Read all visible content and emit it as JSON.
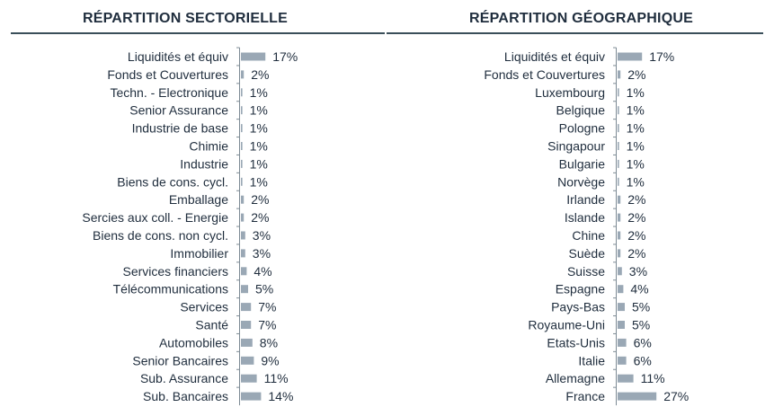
{
  "chart_data": [
    {
      "type": "bar",
      "title": "RÉPARTITION SECTORIELLE",
      "orientation": "horizontal",
      "categories": [
        "Liquidités et équiv",
        "Fonds et Couvertures",
        "Techn. - Electronique",
        "Senior Assurance",
        "Industrie de base",
        "Chimie",
        "Industrie",
        "Biens de cons. cycl.",
        "Emballage",
        "Sercies aux coll. - Energie",
        "Biens de cons. non cycl.",
        "Immobilier",
        "Services financiers",
        "Télécommunications",
        "Services",
        "Santé",
        "Automobiles",
        "Senior Bancaires",
        "Sub. Assurance",
        "Sub. Bancaires"
      ],
      "values": [
        17,
        2,
        1,
        1,
        1,
        1,
        1,
        1,
        2,
        2,
        3,
        3,
        4,
        5,
        7,
        7,
        8,
        9,
        11,
        14
      ],
      "value_labels": [
        "17%",
        "2%",
        "1%",
        "1%",
        "1%",
        "1%",
        "1%",
        "1%",
        "2%",
        "2%",
        "3%",
        "3%",
        "4%",
        "5%",
        "7%",
        "7%",
        "8%",
        "9%",
        "11%",
        "14%"
      ],
      "bar_color": "#9aa8b5",
      "xlim": [
        0,
        30
      ]
    },
    {
      "type": "bar",
      "title": "RÉPARTITION GÉOGRAPHIQUE",
      "orientation": "horizontal",
      "categories": [
        "Liquidités et équiv",
        "Fonds et Couvertures",
        "Luxembourg",
        "Belgique",
        "Pologne",
        "Singapour",
        "Bulgarie",
        "Norvège",
        "Irlande",
        "Islande",
        "Chine",
        "Suède",
        "Suisse",
        "Espagne",
        "Pays-Bas",
        "Royaume-Uni",
        "Etats-Unis",
        "Italie",
        "Allemagne",
        "France"
      ],
      "values": [
        17,
        2,
        1,
        1,
        1,
        1,
        1,
        1,
        2,
        2,
        2,
        2,
        3,
        4,
        5,
        5,
        6,
        6,
        11,
        27
      ],
      "value_labels": [
        "17%",
        "2%",
        "1%",
        "1%",
        "1%",
        "1%",
        "1%",
        "1%",
        "2%",
        "2%",
        "2%",
        "2%",
        "3%",
        "4%",
        "5%",
        "5%",
        "6%",
        "6%",
        "11%",
        "27%"
      ],
      "bar_color": "#9aa8b5",
      "xlim": [
        0,
        30
      ]
    }
  ]
}
